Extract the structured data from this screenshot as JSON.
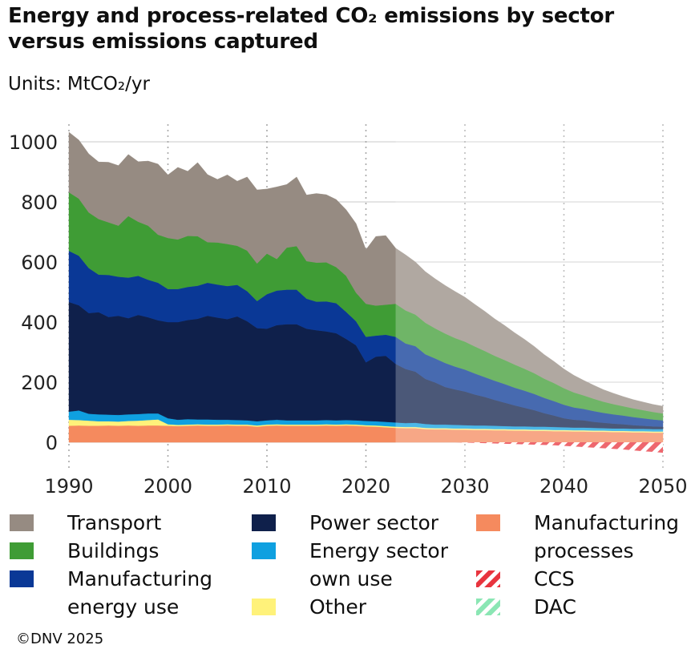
{
  "title": "Energy and process-related CO₂ emissions by sector versus emissions captured",
  "units": "Units: MtCO₂/yr",
  "copyright": "©DNV 2025",
  "chart_data": {
    "type": "area",
    "stacked": true,
    "forecast_start_year": 2023,
    "xlim": [
      1990,
      2050
    ],
    "ylim": [
      -40,
      1000
    ],
    "x_ticks": [
      1990,
      2000,
      2010,
      2020,
      2030,
      2040,
      2050
    ],
    "y_ticks": [
      0,
      200,
      400,
      600,
      800,
      1000
    ],
    "x_tick_labels": [
      "1990",
      "2000",
      "2010",
      "2020",
      "2030",
      "2040",
      "2050"
    ],
    "y_tick_labels": [
      "0",
      "200",
      "400",
      "600",
      "800",
      "1000"
    ],
    "x": [
      1990,
      1991,
      1992,
      1993,
      1994,
      1995,
      1996,
      1997,
      1998,
      1999,
      2000,
      2001,
      2002,
      2003,
      2004,
      2005,
      2006,
      2007,
      2008,
      2009,
      2010,
      2011,
      2012,
      2013,
      2014,
      2015,
      2016,
      2017,
      2018,
      2019,
      2020,
      2021,
      2022,
      2023,
      2024,
      2025,
      2026,
      2027,
      2028,
      2029,
      2030,
      2031,
      2032,
      2033,
      2034,
      2035,
      2036,
      2037,
      2038,
      2039,
      2040,
      2041,
      2042,
      2043,
      2044,
      2045,
      2046,
      2047,
      2048,
      2049,
      2050
    ],
    "series": [
      {
        "name": "Manufacturing processes",
        "color": "#f58a5e",
        "values": [
          55,
          56,
          55,
          55,
          56,
          55,
          56,
          55,
          56,
          56,
          55,
          54,
          55,
          56,
          55,
          55,
          56,
          55,
          55,
          52,
          55,
          56,
          55,
          55,
          55,
          55,
          56,
          55,
          56,
          55,
          53,
          52,
          50,
          48,
          47,
          47,
          44,
          43,
          43,
          42,
          42,
          41,
          41,
          40,
          40,
          39,
          39,
          38,
          38,
          37,
          37,
          36,
          36,
          35,
          35,
          34,
          34,
          33,
          33,
          32,
          32
        ]
      },
      {
        "name": "Other",
        "color": "#fff27a",
        "values": [
          20,
          18,
          17,
          15,
          14,
          14,
          15,
          17,
          18,
          20,
          5,
          4,
          4,
          4,
          4,
          4,
          4,
          4,
          4,
          4,
          4,
          4,
          4,
          4,
          4,
          4,
          4,
          4,
          4,
          4,
          4,
          4,
          4,
          4,
          4,
          4,
          4,
          4,
          4,
          4,
          4,
          4,
          4,
          4,
          4,
          4,
          4,
          4,
          4,
          4,
          4,
          4,
          4,
          4,
          4,
          4,
          4,
          4,
          4,
          4,
          4
        ]
      },
      {
        "name": "Energy sector own use",
        "color": "#0fa0e0",
        "values": [
          27,
          32,
          23,
          23,
          22,
          22,
          22,
          22,
          22,
          20,
          20,
          17,
          18,
          16,
          17,
          16,
          15,
          15,
          14,
          14,
          14,
          15,
          14,
          14,
          14,
          14,
          14,
          14,
          14,
          14,
          14,
          14,
          14,
          14,
          13,
          14,
          13,
          12,
          12,
          12,
          11,
          11,
          11,
          11,
          10,
          10,
          10,
          10,
          10,
          10,
          9,
          9,
          9,
          9,
          8,
          8,
          8,
          8,
          8,
          8,
          8
        ]
      },
      {
        "name": "Power sector",
        "color": "#0f204b",
        "values": [
          365,
          350,
          335,
          340,
          325,
          330,
          320,
          330,
          320,
          310,
          320,
          325,
          330,
          335,
          345,
          340,
          335,
          345,
          330,
          310,
          305,
          315,
          320,
          320,
          305,
          300,
          295,
          290,
          270,
          250,
          195,
          215,
          220,
          195,
          180,
          170,
          150,
          140,
          125,
          118,
          112,
          103,
          95,
          86,
          78,
          70,
          62,
          55,
          45,
          38,
          30,
          26,
          24,
          20,
          18,
          16,
          14,
          12,
          10,
          9,
          8
        ]
      },
      {
        "name": "Manufacturing energy use",
        "color": "#0a3896",
        "values": [
          170,
          165,
          150,
          125,
          140,
          130,
          135,
          130,
          125,
          125,
          110,
          110,
          110,
          110,
          110,
          110,
          110,
          105,
          100,
          90,
          115,
          115,
          115,
          115,
          100,
          95,
          100,
          100,
          90,
          80,
          85,
          70,
          70,
          90,
          85,
          85,
          82,
          80,
          80,
          76,
          73,
          70,
          66,
          64,
          62,
          59,
          57,
          54,
          51,
          48,
          45,
          41,
          38,
          36,
          33,
          31,
          29,
          27,
          25,
          23,
          21
        ]
      },
      {
        "name": "Buildings",
        "color": "#3f9c35",
        "values": [
          195,
          190,
          185,
          185,
          175,
          170,
          205,
          180,
          180,
          160,
          170,
          165,
          170,
          165,
          135,
          140,
          140,
          130,
          135,
          125,
          135,
          105,
          140,
          145,
          125,
          130,
          130,
          120,
          120,
          95,
          110,
          100,
          100,
          110,
          110,
          105,
          105,
          100,
          98,
          95,
          93,
          90,
          87,
          83,
          80,
          77,
          73,
          69,
          64,
          60,
          55,
          50,
          45,
          41,
          37,
          34,
          31,
          29,
          27,
          25,
          23
        ]
      },
      {
        "name": "Transport",
        "color": "#968b82",
        "values": [
          200,
          195,
          195,
          190,
          200,
          200,
          205,
          200,
          215,
          235,
          210,
          240,
          215,
          245,
          225,
          210,
          230,
          215,
          245,
          245,
          215,
          240,
          210,
          230,
          220,
          230,
          225,
          225,
          220,
          230,
          180,
          230,
          230,
          185,
          185,
          175,
          170,
          165,
          160,
          155,
          148,
          140,
          132,
          123,
          115,
          106,
          98,
          89,
          80,
          72,
          64,
          57,
          50,
          45,
          40,
          36,
          32,
          29,
          27,
          25,
          24
        ]
      },
      {
        "name": "CCS",
        "color": "#e8343e",
        "pattern": "hatched",
        "values": [
          0,
          0,
          0,
          0,
          0,
          0,
          0,
          0,
          0,
          0,
          0,
          0,
          0,
          0,
          0,
          0,
          0,
          0,
          0,
          0,
          0,
          0,
          0,
          0,
          0,
          0,
          0,
          0,
          0,
          0,
          0,
          0,
          0,
          0,
          0,
          0,
          0,
          0,
          0,
          0,
          -1,
          -2,
          -3,
          -4,
          -5,
          -6,
          -7,
          -8,
          -9,
          -10,
          -12,
          -14,
          -16,
          -18,
          -20,
          -22,
          -24,
          -27,
          -30,
          -32,
          -35
        ]
      },
      {
        "name": "DAC",
        "color": "#8be6b4",
        "pattern": "hatched",
        "values": [
          0,
          0,
          0,
          0,
          0,
          0,
          0,
          0,
          0,
          0,
          0,
          0,
          0,
          0,
          0,
          0,
          0,
          0,
          0,
          0,
          0,
          0,
          0,
          0,
          0,
          0,
          0,
          0,
          0,
          0,
          0,
          0,
          0,
          0,
          0,
          0,
          0,
          0,
          0,
          0,
          0,
          0,
          0,
          0,
          0,
          0,
          0,
          0,
          0,
          0,
          0,
          0,
          0,
          0,
          0,
          0,
          0,
          0,
          0,
          0,
          0
        ]
      }
    ],
    "legend": [
      {
        "label": "Transport",
        "color": "#968b82"
      },
      {
        "label": "Buildings",
        "color": "#3f9c35"
      },
      {
        "label": "Manufacturing energy use",
        "color": "#0a3896"
      },
      {
        "label": "Power sector",
        "color": "#0f204b"
      },
      {
        "label": "Energy sector own use",
        "color": "#0fa0e0"
      },
      {
        "label": "Other",
        "color": "#fff27a"
      },
      {
        "label": "Manufacturing processes",
        "color": "#f58a5e"
      },
      {
        "label": "CCS",
        "color": "#e8343e"
      },
      {
        "label": "DAC",
        "color": "#8be6b4"
      }
    ]
  },
  "legend_text": {
    "transport": "Transport",
    "buildings": "Buildings",
    "manufacturing_energy_use_line1": "Manufacturing",
    "manufacturing_energy_use_line2": "energy use",
    "power_sector": "Power sector",
    "energy_sector_own_use_line1": "Energy sector",
    "energy_sector_own_use_line2": "own use",
    "other": "Other",
    "manufacturing_processes_line1": "Manufacturing",
    "manufacturing_processes_line2": "processes",
    "ccs": "CCS",
    "dac": "DAC"
  }
}
